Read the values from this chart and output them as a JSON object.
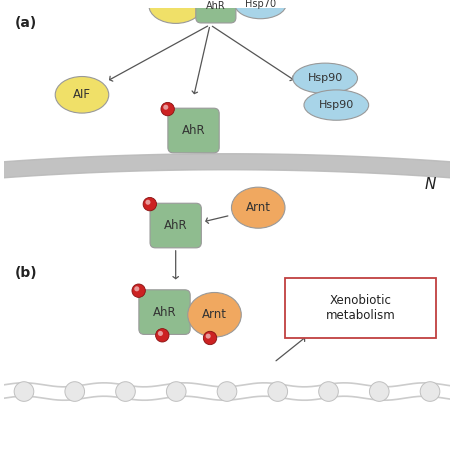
{
  "bg_color": "#ffffff",
  "label_a": "(a)",
  "label_b": "(b)",
  "label_N": "N",
  "green_color": "#8fbc8f",
  "yellow_color": "#f0e068",
  "blue_color": "#a8d4e8",
  "orange_color": "#f0a860",
  "red_dot_color": "#c03030",
  "gray_color": "#b8b8b8",
  "text_color": "#222222",
  "arrow_color": "#555555",
  "box_red": "#c04040",
  "box_text": "Xenobiotic\nmetabolism",
  "ec_color": "#999999"
}
